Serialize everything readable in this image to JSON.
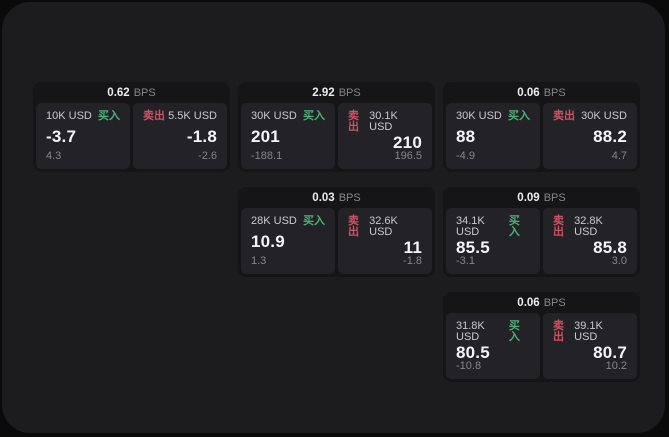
{
  "labels": {
    "bps": "BPS",
    "buy": "买入",
    "sell": "卖出"
  },
  "colors": {
    "page_bg": "#0a0a0b",
    "container_bg": "#1c1c1e",
    "card_bg": "#151517",
    "panel_bg": "#232327",
    "buy": "#4cb277",
    "sell": "#cf5163"
  },
  "cards": [
    {
      "bps": "0.62",
      "buy_amount": "10K USD",
      "buy_value": "-3.7",
      "buy_sub": "4.3",
      "sell_amount": "5.5K USD",
      "sell_value": "-1.8",
      "sell_sub": "-2.6"
    },
    {
      "bps": "2.92",
      "buy_amount": "30K USD",
      "buy_value": "201",
      "buy_sub": "-188.1",
      "sell_amount": "30.1K USD",
      "sell_value": "210",
      "sell_sub": "196.5"
    },
    {
      "bps": "0.06",
      "buy_amount": "30K USD",
      "buy_value": "88",
      "buy_sub": "-4.9",
      "sell_amount": "30K USD",
      "sell_value": "88.2",
      "sell_sub": "4.7"
    },
    {
      "bps": "0.03",
      "buy_amount": "28K USD",
      "buy_value": "10.9",
      "buy_sub": "1.3",
      "sell_amount": "32.6K USD",
      "sell_value": "11",
      "sell_sub": "-1.8"
    },
    {
      "bps": "0.09",
      "buy_amount": "34.1K USD",
      "buy_value": "85.5",
      "buy_sub": "-3.1",
      "sell_amount": "32.8K USD",
      "sell_value": "85.8",
      "sell_sub": "3.0"
    },
    {
      "bps": "0.06",
      "buy_amount": "31.8K USD",
      "buy_value": "80.5",
      "buy_sub": "-10.8",
      "sell_amount": "39.1K USD",
      "sell_value": "80.7",
      "sell_sub": "10.2"
    }
  ]
}
